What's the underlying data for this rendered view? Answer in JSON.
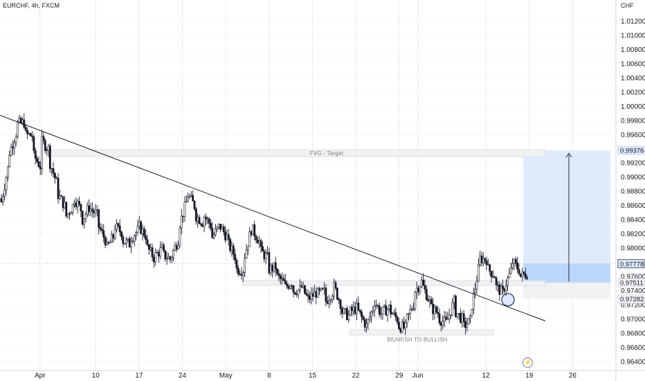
{
  "header": {
    "symbol": "EURCHF, 4h, FXCM",
    "currency": "CHF"
  },
  "colors": {
    "candle": "#131722",
    "grid": "#e6e8ee",
    "box_fill": "#bbd6fb",
    "box_fill_light": "#dbe9fd",
    "gray_zone": "#f0f1f3",
    "price_tag": "#1e2a45",
    "accent_blue": "#2962ff"
  },
  "chart_data": {
    "type": "candlestick",
    "title": "",
    "x_tick_labels": [
      "Apr",
      "10",
      "17",
      "24",
      "May",
      "8",
      "15",
      "22",
      "29",
      "Jun",
      "12",
      "19",
      "26"
    ],
    "y_tick_labels": [
      "1.01200",
      "1.01000",
      "1.00800",
      "1.00600",
      "1.00400",
      "1.00200",
      "1.00000",
      "0.99800",
      "0.99600",
      "0.99200",
      "0.99000",
      "0.98800",
      "0.98600",
      "0.98400",
      "0.98200",
      "0.98000",
      "0.97600",
      "0.97400",
      "0.97200",
      "0.97000",
      "0.96800",
      "0.96600",
      "0.96400"
    ],
    "ylim": [
      0.9632,
      1.014
    ],
    "price_labels": [
      "0.99376",
      "0.97778",
      "0.97511",
      "0.97282"
    ],
    "close_path": [
      [
        0.987,
        0.9865
      ],
      [
        0.992,
        0.9935
      ],
      [
        0.9965,
        0.9975
      ],
      [
        0.9985,
        0.996
      ],
      [
        0.997,
        0.993
      ],
      [
        0.9895,
        0.995
      ],
      [
        0.9945,
        0.992
      ],
      [
        0.989,
        0.9875
      ],
      [
        0.986,
        0.9845
      ],
      [
        0.986,
        0.987
      ],
      [
        0.9855,
        0.984
      ],
      [
        0.9865,
        0.9855
      ],
      [
        0.985,
        0.983
      ],
      [
        0.981,
        0.98
      ],
      [
        0.9815,
        0.983
      ],
      [
        0.9825,
        0.981
      ],
      [
        0.98,
        0.9815
      ],
      [
        0.9825,
        0.983
      ],
      [
        0.982,
        0.98
      ],
      [
        0.978,
        0.979
      ],
      [
        0.9805,
        0.979
      ],
      [
        0.978,
        0.979
      ],
      [
        0.981,
        0.9835
      ],
      [
        0.987,
        0.9875
      ],
      [
        0.986,
        0.9845
      ],
      [
        0.983,
        0.9845
      ],
      [
        0.9835,
        0.9815
      ],
      [
        0.9835,
        0.983
      ],
      [
        0.9815,
        0.9805
      ],
      [
        0.979,
        0.977
      ],
      [
        0.976,
        0.979
      ],
      [
        0.984,
        0.9825
      ],
      [
        0.981,
        0.9795
      ],
      [
        0.979,
        0.977
      ],
      [
        0.978,
        0.976
      ],
      [
        0.975,
        0.9745
      ],
      [
        0.976,
        0.974
      ],
      [
        0.974,
        0.9745
      ],
      [
        0.972,
        0.973
      ],
      [
        0.974,
        0.9735
      ],
      [
        0.9745,
        0.9725
      ],
      [
        0.974,
        0.9745
      ],
      [
        0.972,
        0.971
      ],
      [
        0.97,
        0.971
      ],
      [
        0.972,
        0.971
      ],
      [
        0.969,
        0.969
      ],
      [
        0.972,
        0.9725
      ],
      [
        0.97,
        0.971
      ],
      [
        0.972,
        0.971
      ],
      [
        0.97,
        0.969
      ],
      [
        0.968,
        0.97
      ],
      [
        0.972,
        0.974
      ],
      [
        0.976,
        0.9745
      ],
      [
        0.972,
        0.9715
      ],
      [
        0.971,
        0.97
      ],
      [
        0.969,
        0.97
      ],
      [
        0.974,
        0.971
      ],
      [
        0.97,
        0.969
      ],
      [
        0.969,
        0.972
      ],
      [
        0.978,
        0.9785
      ],
      [
        0.979,
        0.977
      ],
      [
        0.9765,
        0.9745
      ],
      [
        0.973,
        0.9745
      ],
      [
        0.977,
        0.978
      ],
      [
        0.977,
        0.976
      ],
      [
        0.976,
        0.9778
      ]
    ],
    "trendline": {
      "from": [
        "Mar 27",
        0.9995
      ],
      "to": [
        "Jun 21",
        0.97
      ]
    },
    "annotations": [
      {
        "text": "FVG - Target",
        "price": 0.99376,
        "from": "Apr 1",
        "to": "Jun 21"
      },
      {
        "text": "BEARISH TO BULLISH",
        "price": 0.968,
        "from": "May 22",
        "to": "Jun 12"
      }
    ],
    "position_box": {
      "entry": 0.97511,
      "target": 0.99376,
      "stop": 0.97282,
      "upper_band": 0.97778
    },
    "grid": true
  },
  "labels": {
    "fvg": "FVG - Target",
    "bearish_bullish": "BEARISH TO BULLISH"
  }
}
